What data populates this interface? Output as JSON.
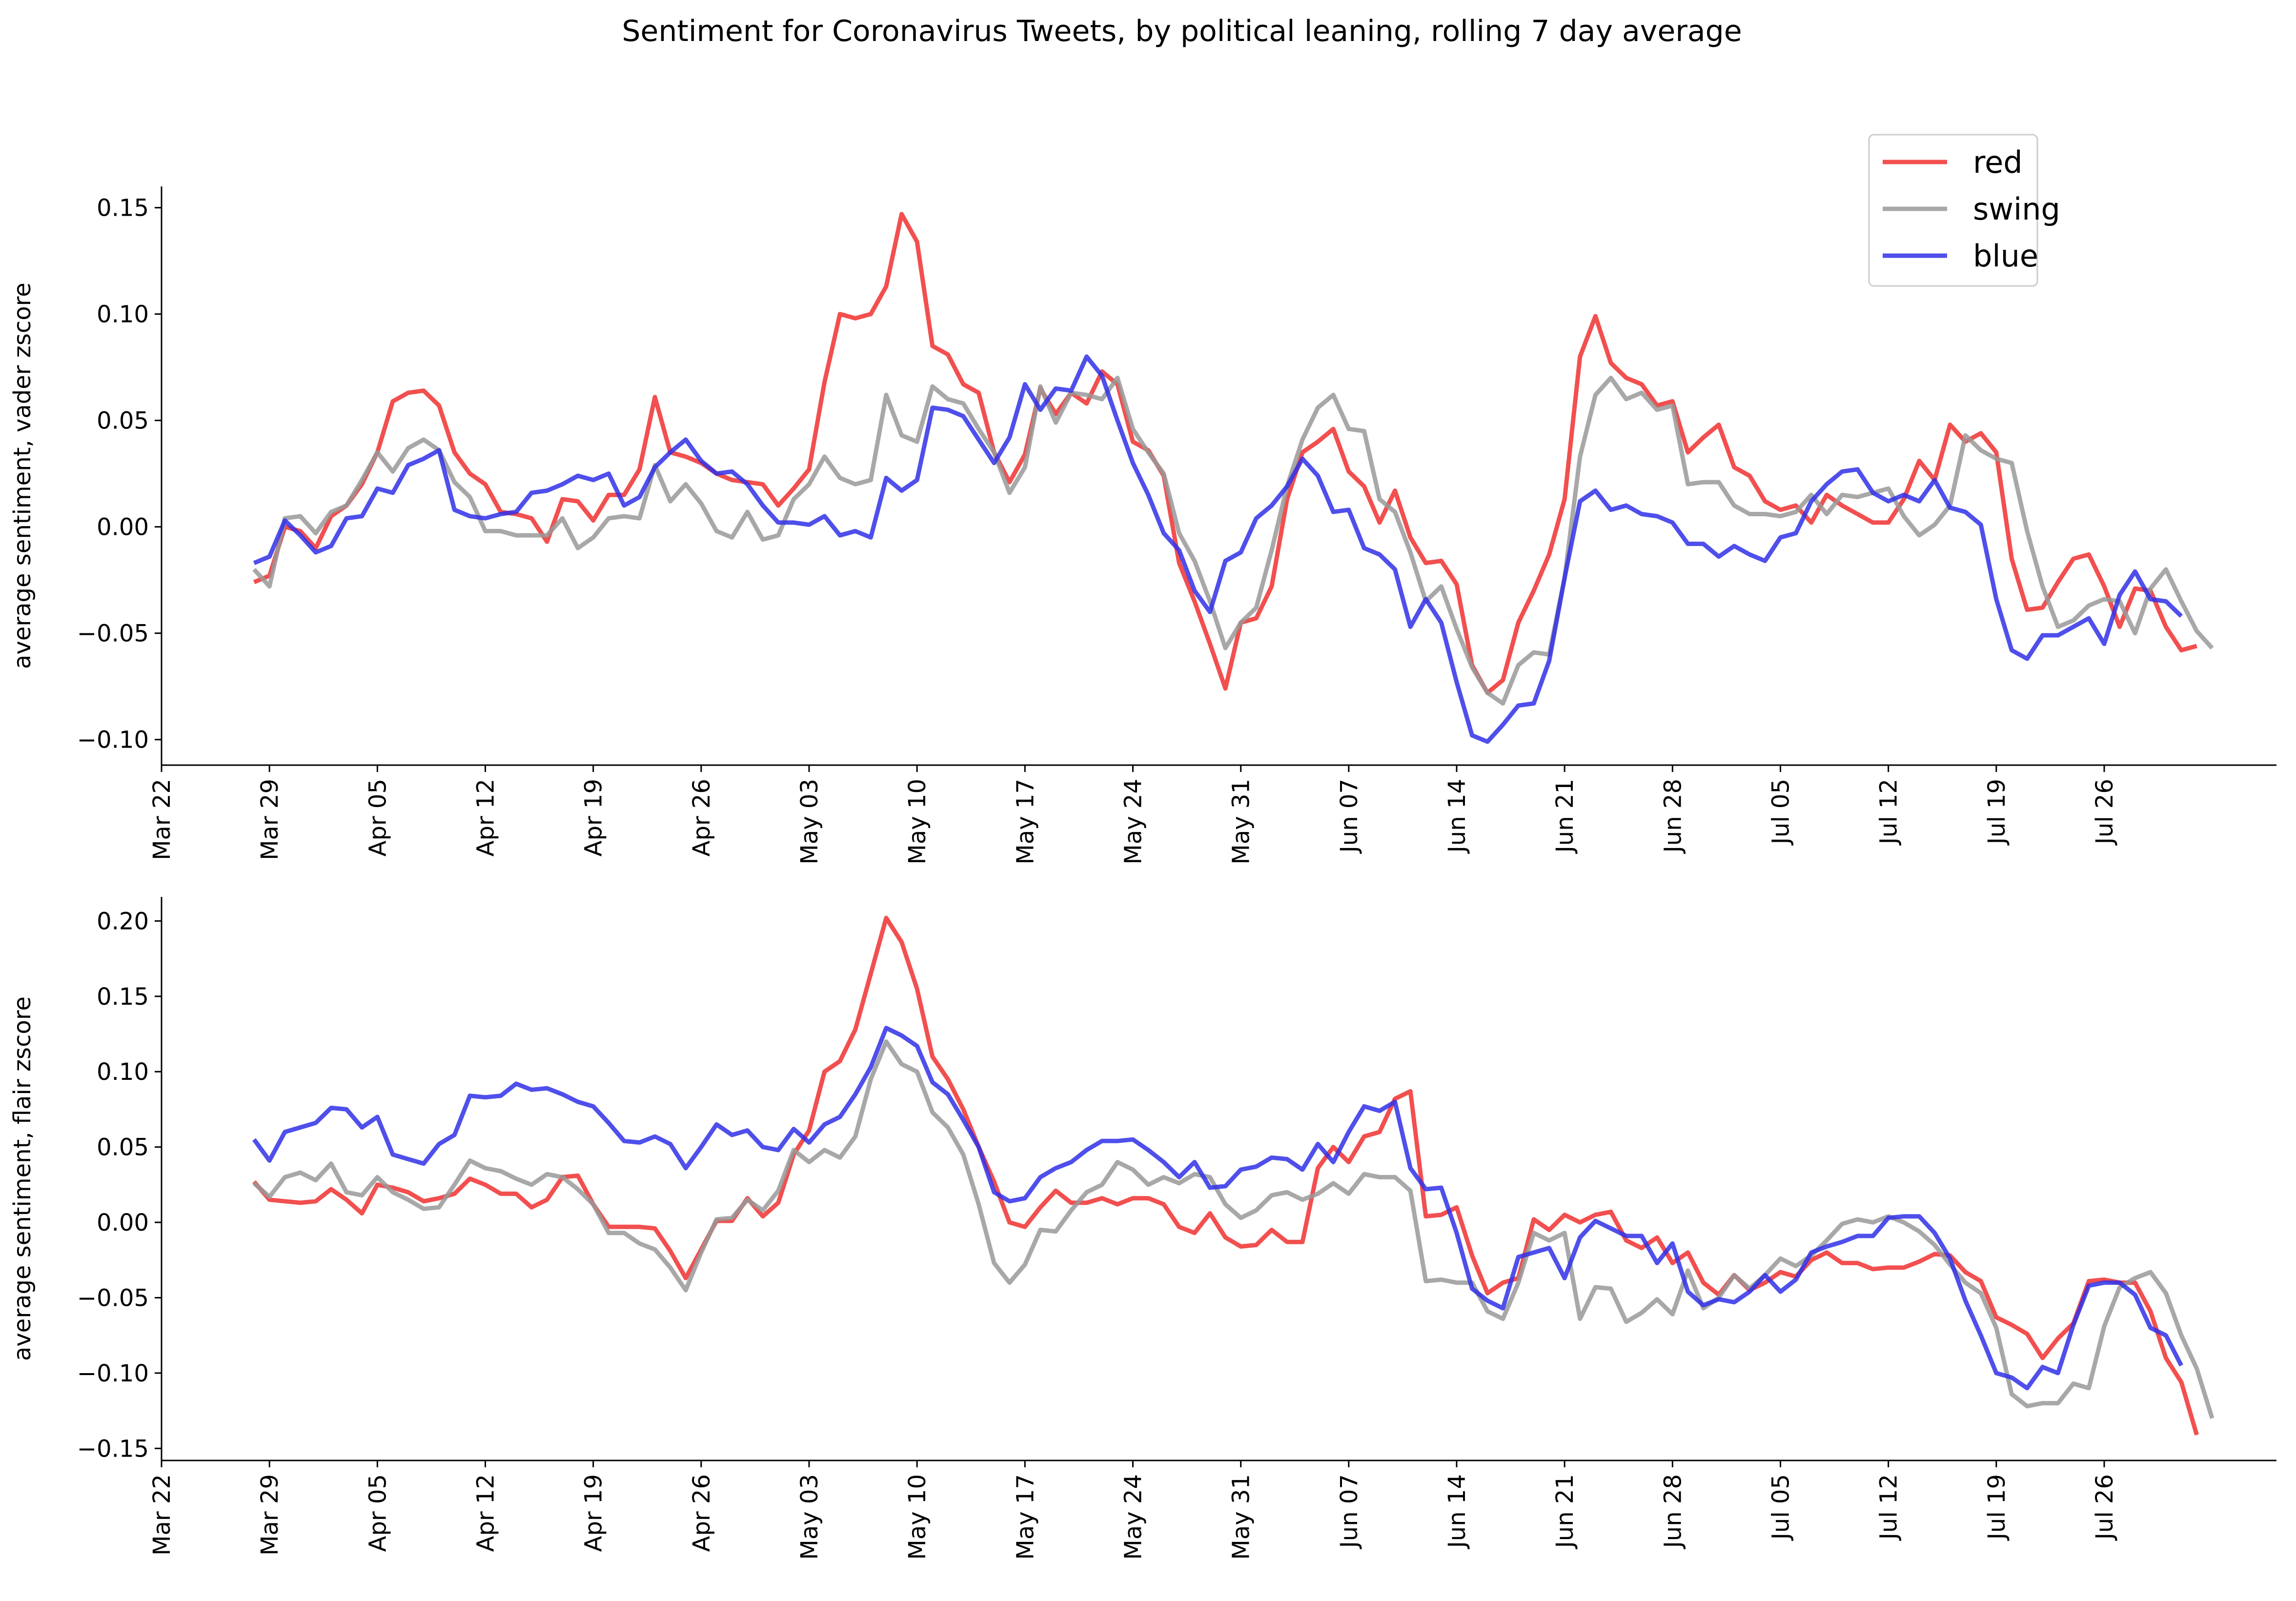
{
  "chart_data": {
    "type": "line",
    "title": "Sentiment for Coronavirus Tweets, by political leaning, rolling 7 day average",
    "legend": {
      "placement": "top-right",
      "entries": [
        {
          "name": "red",
          "color": "#f03030"
        },
        {
          "name": "swing",
          "color": "#999999"
        },
        {
          "name": "blue",
          "color": "#3030e8"
        }
      ]
    },
    "x_ticks": [
      "Mar 22",
      "Mar 29",
      "Apr 05",
      "Apr 12",
      "Apr 19",
      "Apr 26",
      "May 03",
      "May 10",
      "May 17",
      "May 24",
      "May 31",
      "Jun 07",
      "Jun 14",
      "Jun 21",
      "Jun 28",
      "Jul 05",
      "Jul 12",
      "Jul 19",
      "Jul 26"
    ],
    "x_start": "2020-03-28",
    "x_step_days": 1,
    "panels": [
      {
        "ylabel": "average sentiment, vader zscore",
        "ylim": [
          -0.112,
          0.16
        ],
        "yticks": [
          -0.1,
          -0.05,
          0.0,
          0.05,
          0.1,
          0.15
        ],
        "ytick_labels": [
          "−0.10",
          "−0.05",
          "0.00",
          "0.05",
          "0.10",
          "0.15"
        ],
        "series": [
          {
            "name": "red",
            "values": [
              -0.026,
              -0.023,
              0.0,
              -0.002,
              -0.01,
              0.005,
              0.01,
              0.02,
              0.035,
              0.059,
              0.063,
              0.064,
              0.057,
              0.035,
              0.025,
              0.02,
              0.007,
              0.006,
              0.004,
              -0.007,
              0.013,
              0.012,
              0.003,
              0.015,
              0.015,
              0.027,
              0.061,
              0.035,
              0.033,
              0.03,
              0.025,
              0.022,
              0.021,
              0.02,
              0.01,
              0.018,
              0.027,
              0.068,
              0.1,
              0.098,
              0.1,
              0.113,
              0.147,
              0.134,
              0.085,
              0.081,
              0.067,
              0.063,
              0.035,
              0.021,
              0.034,
              0.065,
              0.053,
              0.063,
              0.058,
              0.073,
              0.067,
              0.04,
              0.036,
              0.024,
              -0.017,
              -0.035,
              -0.055,
              -0.076,
              -0.045,
              -0.043,
              -0.028,
              0.013,
              0.035,
              0.04,
              0.046,
              0.026,
              0.019,
              0.002,
              0.017,
              -0.005,
              -0.017,
              -0.016,
              -0.027,
              -0.065,
              -0.078,
              -0.072,
              -0.045,
              -0.03,
              -0.013,
              0.013,
              0.08,
              0.099,
              0.077,
              0.07,
              0.067,
              0.057,
              0.059,
              0.035,
              0.042,
              0.048,
              0.028,
              0.024,
              0.012,
              0.008,
              0.01,
              0.002,
              0.015,
              0.01,
              0.006,
              0.002,
              0.002,
              0.013,
              0.031,
              0.022,
              0.048,
              0.04,
              0.044,
              0.035,
              -0.015,
              -0.039,
              -0.038,
              -0.026,
              -0.015,
              -0.013,
              -0.028,
              -0.047,
              -0.029,
              -0.03,
              -0.047,
              -0.058,
              -0.056
            ]
          },
          {
            "name": "swing",
            "values": [
              -0.02,
              -0.028,
              0.004,
              0.005,
              -0.003,
              0.007,
              0.01,
              0.022,
              0.035,
              0.026,
              0.037,
              0.041,
              0.036,
              0.021,
              0.014,
              -0.002,
              -0.002,
              -0.004,
              -0.004,
              -0.004,
              0.004,
              -0.01,
              -0.005,
              0.004,
              0.005,
              0.004,
              0.029,
              0.012,
              0.02,
              0.011,
              -0.002,
              -0.005,
              0.007,
              -0.006,
              -0.004,
              0.013,
              0.02,
              0.033,
              0.023,
              0.02,
              0.022,
              0.062,
              0.043,
              0.04,
              0.066,
              0.06,
              0.058,
              0.046,
              0.035,
              0.016,
              0.028,
              0.066,
              0.049,
              0.063,
              0.062,
              0.06,
              0.07,
              0.046,
              0.035,
              0.025,
              -0.003,
              -0.016,
              -0.035,
              -0.057,
              -0.045,
              -0.038,
              -0.011,
              0.019,
              0.041,
              0.056,
              0.062,
              0.046,
              0.045,
              0.013,
              0.007,
              -0.012,
              -0.035,
              -0.028,
              -0.048,
              -0.066,
              -0.078,
              -0.083,
              -0.065,
              -0.059,
              -0.06,
              -0.024,
              0.033,
              0.062,
              0.07,
              0.06,
              0.063,
              0.055,
              0.057,
              0.02,
              0.021,
              0.021,
              0.01,
              0.006,
              0.006,
              0.005,
              0.007,
              0.015,
              0.006,
              0.015,
              0.014,
              0.016,
              0.018,
              0.005,
              -0.004,
              0.001,
              0.01,
              0.043,
              0.036,
              0.032,
              0.03,
              -0.002,
              -0.028,
              -0.047,
              -0.044,
              -0.037,
              -0.034,
              -0.035,
              -0.05,
              -0.029,
              -0.02,
              -0.035,
              -0.049,
              -0.057
            ]
          },
          {
            "name": "blue",
            "values": [
              -0.017,
              -0.014,
              0.003,
              -0.004,
              -0.012,
              -0.009,
              0.004,
              0.005,
              0.018,
              0.016,
              0.029,
              0.032,
              0.036,
              0.008,
              0.005,
              0.004,
              0.006,
              0.007,
              0.016,
              0.017,
              0.02,
              0.024,
              0.022,
              0.025,
              0.01,
              0.014,
              0.028,
              0.035,
              0.041,
              0.031,
              0.025,
              0.026,
              0.02,
              0.01,
              0.002,
              0.002,
              0.001,
              0.005,
              -0.004,
              -0.002,
              -0.005,
              0.023,
              0.017,
              0.022,
              0.056,
              0.055,
              0.052,
              0.041,
              0.03,
              0.042,
              0.067,
              0.055,
              0.065,
              0.064,
              0.08,
              0.071,
              0.05,
              0.03,
              0.015,
              -0.003,
              -0.011,
              -0.03,
              -0.04,
              -0.016,
              -0.012,
              0.004,
              0.01,
              0.019,
              0.032,
              0.024,
              0.007,
              0.008,
              -0.01,
              -0.013,
              -0.02,
              -0.047,
              -0.034,
              -0.045,
              -0.073,
              -0.098,
              -0.101,
              -0.093,
              -0.084,
              -0.083,
              -0.063,
              -0.024,
              0.012,
              0.017,
              0.008,
              0.01,
              0.006,
              0.005,
              0.002,
              -0.008,
              -0.008,
              -0.014,
              -0.009,
              -0.013,
              -0.016,
              -0.005,
              -0.003,
              0.012,
              0.02,
              0.026,
              0.027,
              0.016,
              0.012,
              0.015,
              0.012,
              0.022,
              0.009,
              0.007,
              0.001,
              -0.034,
              -0.058,
              -0.062,
              -0.051,
              -0.051,
              -0.047,
              -0.043,
              -0.055,
              -0.032,
              -0.021,
              -0.034,
              -0.035,
              -0.042
            ]
          }
        ]
      },
      {
        "ylabel": "average sentiment, flair zscore",
        "ylim": [
          -0.158,
          0.216
        ],
        "yticks": [
          -0.15,
          -0.1,
          -0.05,
          0.0,
          0.05,
          0.1,
          0.15,
          0.2
        ],
        "ytick_labels": [
          "−0.15",
          "−0.10",
          "−0.05",
          "0.00",
          "0.05",
          "0.10",
          "0.15",
          "0.20"
        ],
        "series": [
          {
            "name": "red",
            "values": [
              0.027,
              0.015,
              0.014,
              0.013,
              0.014,
              0.022,
              0.015,
              0.006,
              0.025,
              0.023,
              0.02,
              0.014,
              0.016,
              0.019,
              0.029,
              0.025,
              0.019,
              0.019,
              0.01,
              0.015,
              0.03,
              0.031,
              0.012,
              -0.003,
              -0.003,
              -0.003,
              -0.004,
              -0.019,
              -0.037,
              -0.018,
              0.001,
              0.001,
              0.016,
              0.004,
              0.013,
              0.045,
              0.061,
              0.1,
              0.107,
              0.128,
              0.165,
              0.202,
              0.186,
              0.155,
              0.11,
              0.095,
              0.075,
              0.05,
              0.027,
              0.0,
              -0.003,
              0.01,
              0.021,
              0.013,
              0.013,
              0.016,
              0.012,
              0.016,
              0.016,
              0.012,
              -0.003,
              -0.007,
              0.006,
              -0.01,
              -0.016,
              -0.015,
              -0.005,
              -0.013,
              -0.013,
              0.036,
              0.05,
              0.04,
              0.057,
              0.06,
              0.082,
              0.087,
              0.004,
              0.005,
              0.01,
              -0.022,
              -0.047,
              -0.04,
              -0.037,
              0.002,
              -0.005,
              0.005,
              0.0,
              0.005,
              0.007,
              -0.012,
              -0.017,
              -0.01,
              -0.027,
              -0.02,
              -0.04,
              -0.048,
              -0.035,
              -0.045,
              -0.04,
              -0.033,
              -0.036,
              -0.025,
              -0.02,
              -0.027,
              -0.027,
              -0.031,
              -0.03,
              -0.03,
              -0.026,
              -0.021,
              -0.022,
              -0.033,
              -0.039,
              -0.063,
              -0.068,
              -0.074,
              -0.09,
              -0.077,
              -0.067,
              -0.039,
              -0.038,
              -0.04,
              -0.04,
              -0.059,
              -0.09,
              -0.106,
              -0.141
            ]
          },
          {
            "name": "swing",
            "values": [
              0.026,
              0.017,
              0.03,
              0.033,
              0.028,
              0.039,
              0.02,
              0.018,
              0.03,
              0.02,
              0.015,
              0.009,
              0.01,
              0.025,
              0.041,
              0.036,
              0.034,
              0.029,
              0.025,
              0.032,
              0.03,
              0.022,
              0.012,
              -0.007,
              -0.007,
              -0.014,
              -0.018,
              -0.03,
              -0.045,
              -0.02,
              0.002,
              0.003,
              0.015,
              0.008,
              0.021,
              0.048,
              0.04,
              0.048,
              0.043,
              0.057,
              0.095,
              0.12,
              0.105,
              0.1,
              0.073,
              0.063,
              0.045,
              0.012,
              -0.027,
              -0.04,
              -0.028,
              -0.005,
              -0.006,
              0.008,
              0.02,
              0.025,
              0.04,
              0.035,
              0.025,
              0.03,
              0.026,
              0.032,
              0.03,
              0.012,
              0.003,
              0.008,
              0.018,
              0.02,
              0.015,
              0.019,
              0.026,
              0.019,
              0.032,
              0.03,
              0.03,
              0.021,
              -0.039,
              -0.038,
              -0.04,
              -0.04,
              -0.059,
              -0.064,
              -0.04,
              -0.007,
              -0.012,
              -0.007,
              -0.064,
              -0.043,
              -0.044,
              -0.066,
              -0.06,
              -0.051,
              -0.061,
              -0.032,
              -0.057,
              -0.05,
              -0.035,
              -0.044,
              -0.035,
              -0.024,
              -0.029,
              -0.022,
              -0.012,
              -0.001,
              0.002,
              0.0,
              0.004,
              0.0,
              -0.006,
              -0.015,
              -0.028,
              -0.04,
              -0.047,
              -0.07,
              -0.114,
              -0.122,
              -0.12,
              -0.12,
              -0.107,
              -0.11,
              -0.069,
              -0.043,
              -0.037,
              -0.033,
              -0.047,
              -0.075,
              -0.097,
              -0.13
            ]
          },
          {
            "name": "blue",
            "values": [
              0.055,
              0.041,
              0.06,
              0.063,
              0.066,
              0.076,
              0.075,
              0.063,
              0.07,
              0.045,
              0.042,
              0.039,
              0.052,
              0.058,
              0.084,
              0.083,
              0.084,
              0.092,
              0.088,
              0.089,
              0.085,
              0.08,
              0.077,
              0.066,
              0.054,
              0.053,
              0.057,
              0.052,
              0.036,
              0.05,
              0.065,
              0.058,
              0.061,
              0.05,
              0.048,
              0.062,
              0.053,
              0.065,
              0.07,
              0.085,
              0.103,
              0.129,
              0.124,
              0.117,
              0.093,
              0.085,
              0.068,
              0.05,
              0.02,
              0.014,
              0.016,
              0.03,
              0.036,
              0.04,
              0.048,
              0.054,
              0.054,
              0.055,
              0.048,
              0.04,
              0.03,
              0.04,
              0.023,
              0.024,
              0.035,
              0.037,
              0.043,
              0.042,
              0.035,
              0.052,
              0.04,
              0.06,
              0.077,
              0.074,
              0.08,
              0.036,
              0.022,
              0.023,
              -0.007,
              -0.044,
              -0.052,
              -0.057,
              -0.023,
              -0.02,
              -0.017,
              -0.037,
              -0.01,
              0.001,
              -0.004,
              -0.009,
              -0.009,
              -0.027,
              -0.014,
              -0.046,
              -0.055,
              -0.051,
              -0.053,
              -0.046,
              -0.035,
              -0.046,
              -0.038,
              -0.02,
              -0.016,
              -0.013,
              -0.009,
              -0.009,
              0.003,
              0.004,
              0.004,
              -0.007,
              -0.024,
              -0.052,
              -0.075,
              -0.1,
              -0.103,
              -0.11,
              -0.096,
              -0.1,
              -0.068,
              -0.042,
              -0.04,
              -0.04,
              -0.048,
              -0.07,
              -0.075,
              -0.095
            ]
          }
        ]
      }
    ]
  }
}
